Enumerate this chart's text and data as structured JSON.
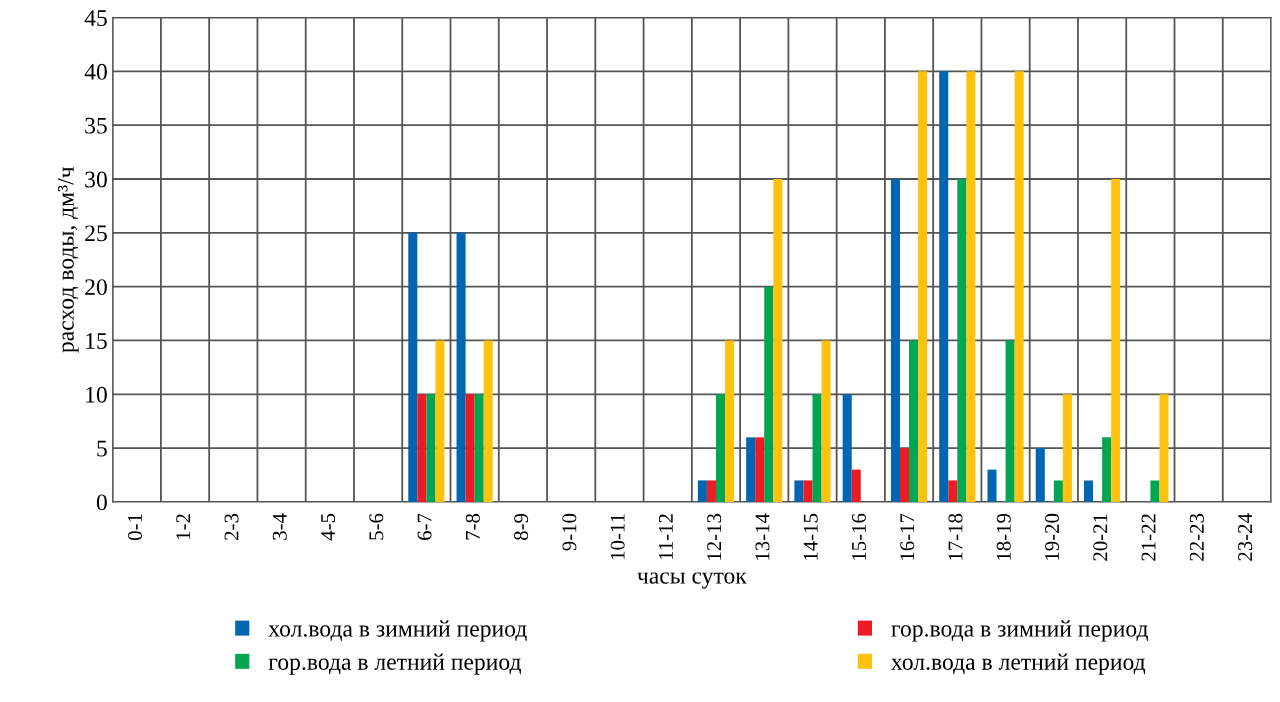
{
  "chart_data": {
    "type": "bar",
    "xlabel": "часы суток",
    "ylabel": "расход воды, дм³/ч",
    "categories": [
      "0-1",
      "1-2",
      "2-3",
      "3-4",
      "4-5",
      "5-6",
      "6-7",
      "7-8",
      "8-9",
      "9-10",
      "10-11",
      "11-12",
      "12-13",
      "13-14",
      "14-15",
      "15-16",
      "16-17",
      "17-18",
      "18-19",
      "19-20",
      "20-21",
      "21-22",
      "22-23",
      "23-24"
    ],
    "series": [
      {
        "name": "хол.вода в зимний период",
        "color": "#0066b3",
        "values": [
          null,
          null,
          null,
          null,
          null,
          null,
          25,
          25,
          null,
          null,
          null,
          null,
          2,
          6,
          2,
          10,
          30,
          40,
          3,
          5,
          2,
          null,
          null,
          null
        ]
      },
      {
        "name": "гор.вода в зимний период",
        "color": "#ed1c24",
        "values": [
          null,
          null,
          null,
          null,
          null,
          null,
          10,
          10,
          null,
          null,
          null,
          null,
          2,
          6,
          2,
          3,
          5,
          2,
          null,
          null,
          null,
          null,
          null,
          null
        ]
      },
      {
        "name": "гор.вода в летний период",
        "color": "#00a651",
        "values": [
          null,
          null,
          null,
          null,
          null,
          null,
          10,
          10,
          null,
          null,
          null,
          null,
          10,
          20,
          10,
          null,
          15,
          30,
          15,
          2,
          6,
          2,
          null,
          null
        ]
      },
      {
        "name": "хол.вода в летний период",
        "color": "#ffc20e",
        "values": [
          null,
          null,
          null,
          null,
          null,
          null,
          15,
          15,
          null,
          null,
          null,
          null,
          15,
          30,
          15,
          null,
          40,
          40,
          40,
          10,
          30,
          10,
          null,
          null
        ]
      }
    ],
    "ylim": [
      0,
      45
    ],
    "yticks": [
      0,
      5,
      10,
      15,
      20,
      25,
      30,
      35,
      40,
      45
    ],
    "grid": true,
    "legend": "bottom"
  }
}
